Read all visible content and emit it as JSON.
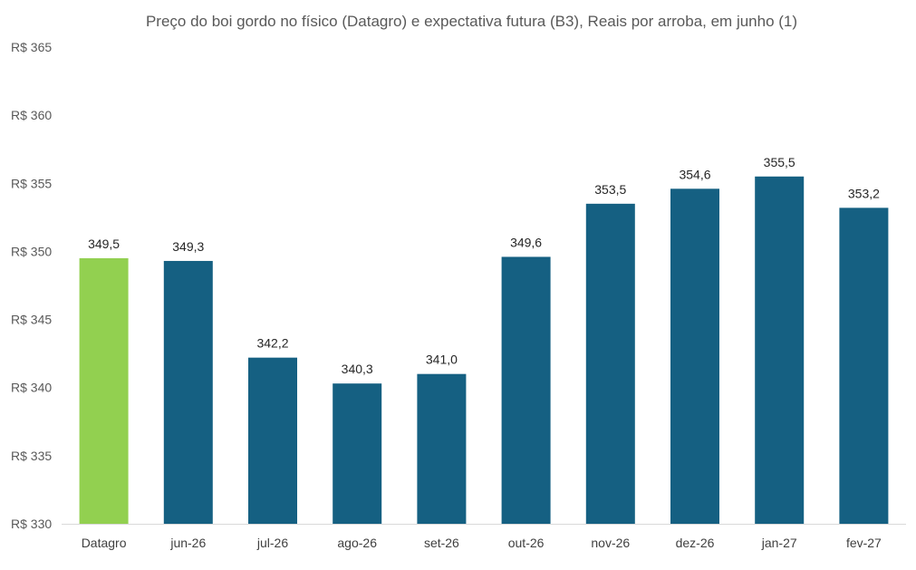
{
  "chart_data": {
    "type": "bar",
    "title": "Preço do boi gordo no físico (Datagro)  e expectativa futura (B3), Reais por arroba, em junho (1)",
    "xlabel": "",
    "ylabel": "",
    "categories": [
      "Datagro",
      "jun-26",
      "jul-26",
      "ago-26",
      "set-26",
      "out-26",
      "nov-26",
      "dez-26",
      "jan-27",
      "fev-27"
    ],
    "values": [
      349.5,
      349.3,
      342.2,
      340.3,
      341.0,
      349.6,
      353.5,
      354.6,
      355.5,
      353.2
    ],
    "value_labels": [
      "349,5",
      "349,3",
      "342,2",
      "340,3",
      "341,0",
      "349,6",
      "353,5",
      "354,6",
      "355,5",
      "353,2"
    ],
    "ylim": [
      330,
      365
    ],
    "yticks": [
      330,
      335,
      340,
      345,
      350,
      355,
      360,
      365
    ],
    "ytick_labels": [
      "R$ 330",
      "R$ 335",
      "R$ 340",
      "R$ 345",
      "R$ 350",
      "R$ 355",
      "R$ 360",
      "R$ 365"
    ],
    "grid": false,
    "legend": "none",
    "colors": {
      "highlight": "#92d050",
      "bars": "#156082",
      "axis": "#d9d9d9"
    },
    "bar_colors": [
      "highlight",
      "bars",
      "bars",
      "bars",
      "bars",
      "bars",
      "bars",
      "bars",
      "bars",
      "bars"
    ]
  }
}
